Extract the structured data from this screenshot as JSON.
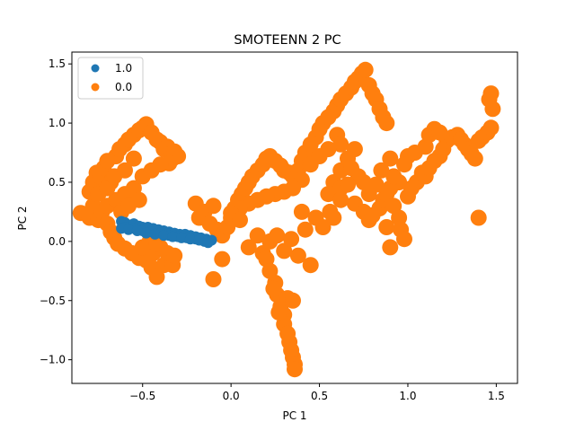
{
  "chart_data": {
    "type": "scatter",
    "title": "SMOTEENN 2 PC",
    "xlabel": "PC 1",
    "ylabel": "PC 2",
    "xlim": [
      -0.9,
      1.62
    ],
    "ylim": [
      -1.2,
      1.6
    ],
    "xticks": [
      -0.5,
      0.0,
      0.5,
      1.0,
      1.5
    ],
    "xtick_labels": [
      "−0.5",
      "0.0",
      "0.5",
      "1.0",
      "1.5"
    ],
    "yticks": [
      -1.0,
      -0.5,
      0.0,
      0.5,
      1.0,
      1.5
    ],
    "ytick_labels": [
      "−1.0",
      "−0.5",
      "0.0",
      "0.5",
      "1.0",
      "1.5"
    ],
    "grid": false,
    "legend": {
      "position": "top-left"
    },
    "series": [
      {
        "name": "1.0",
        "color": "#1f77b4",
        "points": [
          [
            -0.62,
            0.17
          ],
          [
            -0.6,
            0.16
          ],
          [
            -0.58,
            0.14
          ],
          [
            -0.55,
            0.15
          ],
          [
            -0.52,
            0.13
          ],
          [
            -0.5,
            0.12
          ],
          [
            -0.47,
            0.12
          ],
          [
            -0.44,
            0.11
          ],
          [
            -0.41,
            0.1
          ],
          [
            -0.38,
            0.09
          ],
          [
            -0.35,
            0.08
          ],
          [
            -0.32,
            0.07
          ],
          [
            -0.29,
            0.06
          ],
          [
            -0.26,
            0.06
          ],
          [
            -0.23,
            0.05
          ],
          [
            -0.2,
            0.04
          ],
          [
            -0.17,
            0.03
          ],
          [
            -0.14,
            0.02
          ],
          [
            -0.11,
            0.01
          ],
          [
            -0.6,
            0.12
          ],
          [
            -0.55,
            0.11
          ],
          [
            -0.5,
            0.09
          ],
          [
            -0.45,
            0.08
          ],
          [
            -0.4,
            0.07
          ],
          [
            -0.35,
            0.05
          ],
          [
            -0.3,
            0.04
          ],
          [
            -0.25,
            0.03
          ],
          [
            -0.2,
            0.02
          ],
          [
            -0.15,
            0.0
          ],
          [
            -0.62,
            0.11
          ],
          [
            -0.58,
            0.1
          ],
          [
            -0.53,
            0.09
          ],
          [
            -0.48,
            0.07
          ],
          [
            -0.43,
            0.06
          ],
          [
            -0.38,
            0.05
          ],
          [
            -0.33,
            0.04
          ],
          [
            -0.28,
            0.03
          ],
          [
            -0.23,
            0.02
          ],
          [
            -0.18,
            0.01
          ],
          [
            -0.13,
            -0.01
          ]
        ]
      },
      {
        "name": "0.0",
        "color": "#ff7f0e",
        "points": [
          [
            -0.85,
            0.24
          ],
          [
            -0.8,
            0.2
          ],
          [
            -0.78,
            0.3
          ],
          [
            -0.75,
            0.18
          ],
          [
            -0.73,
            0.25
          ],
          [
            -0.7,
            0.15
          ],
          [
            -0.68,
            0.08
          ],
          [
            -0.66,
            0.03
          ],
          [
            -0.64,
            -0.02
          ],
          [
            -0.6,
            -0.06
          ],
          [
            -0.56,
            -0.1
          ],
          [
            -0.52,
            -0.14
          ],
          [
            -0.48,
            -0.16
          ],
          [
            -0.45,
            -0.22
          ],
          [
            -0.42,
            -0.3
          ],
          [
            -0.44,
            -0.1
          ],
          [
            -0.4,
            -0.05
          ],
          [
            -0.38,
            -0.2
          ],
          [
            -0.35,
            -0.15
          ],
          [
            -0.33,
            -0.2
          ],
          [
            -0.5,
            -0.05
          ],
          [
            -0.46,
            0.0
          ],
          [
            -0.42,
            -0.02
          ],
          [
            -0.36,
            -0.1
          ],
          [
            -0.32,
            -0.12
          ],
          [
            -0.8,
            0.42
          ],
          [
            -0.78,
            0.5
          ],
          [
            -0.76,
            0.58
          ],
          [
            -0.74,
            0.55
          ],
          [
            -0.72,
            0.62
          ],
          [
            -0.7,
            0.68
          ],
          [
            -0.68,
            0.5
          ],
          [
            -0.65,
            0.72
          ],
          [
            -0.63,
            0.78
          ],
          [
            -0.6,
            0.82
          ],
          [
            -0.58,
            0.86
          ],
          [
            -0.55,
            0.9
          ],
          [
            -0.52,
            0.94
          ],
          [
            -0.5,
            0.96
          ],
          [
            -0.48,
            0.99
          ],
          [
            -0.45,
            0.92
          ],
          [
            -0.42,
            0.86
          ],
          [
            -0.4,
            0.84
          ],
          [
            -0.38,
            0.78
          ],
          [
            -0.36,
            0.8
          ],
          [
            -0.34,
            0.74
          ],
          [
            -0.33,
            0.7
          ],
          [
            -0.32,
            0.76
          ],
          [
            -0.3,
            0.72
          ],
          [
            -0.35,
            0.66
          ],
          [
            -0.7,
            0.3
          ],
          [
            -0.65,
            0.35
          ],
          [
            -0.6,
            0.4
          ],
          [
            -0.55,
            0.45
          ],
          [
            -0.5,
            0.55
          ],
          [
            -0.45,
            0.6
          ],
          [
            -0.4,
            0.65
          ],
          [
            -0.62,
            0.25
          ],
          [
            -0.58,
            0.3
          ],
          [
            -0.52,
            0.35
          ],
          [
            -0.75,
            0.4
          ],
          [
            -0.7,
            0.45
          ],
          [
            -0.66,
            0.55
          ],
          [
            -0.6,
            0.6
          ],
          [
            -0.55,
            0.7
          ],
          [
            -0.2,
            0.32
          ],
          [
            -0.18,
            0.2
          ],
          [
            -0.15,
            0.25
          ],
          [
            -0.12,
            0.15
          ],
          [
            -0.1,
            0.3
          ],
          [
            -0.08,
            0.1
          ],
          [
            -0.05,
            0.05
          ],
          [
            -0.02,
            0.12
          ],
          [
            0.0,
            0.2
          ],
          [
            0.02,
            0.28
          ],
          [
            0.04,
            0.35
          ],
          [
            0.06,
            0.4
          ],
          [
            0.08,
            0.45
          ],
          [
            0.1,
            0.5
          ],
          [
            0.12,
            0.55
          ],
          [
            0.15,
            0.6
          ],
          [
            0.18,
            0.65
          ],
          [
            0.2,
            0.7
          ],
          [
            0.22,
            0.72
          ],
          [
            0.25,
            0.68
          ],
          [
            0.28,
            0.64
          ],
          [
            0.3,
            0.6
          ],
          [
            0.33,
            0.58
          ],
          [
            0.35,
            0.55
          ],
          [
            0.38,
            0.6
          ],
          [
            0.4,
            0.68
          ],
          [
            0.42,
            0.75
          ],
          [
            0.45,
            0.82
          ],
          [
            0.48,
            0.88
          ],
          [
            0.5,
            0.95
          ],
          [
            0.52,
            1.0
          ],
          [
            0.55,
            1.05
          ],
          [
            0.58,
            1.1
          ],
          [
            0.6,
            1.15
          ],
          [
            0.62,
            1.2
          ],
          [
            0.65,
            1.25
          ],
          [
            0.68,
            1.3
          ],
          [
            0.7,
            1.35
          ],
          [
            0.72,
            1.38
          ],
          [
            0.74,
            1.42
          ],
          [
            0.76,
            1.45
          ],
          [
            0.78,
            1.32
          ],
          [
            0.8,
            1.25
          ],
          [
            0.82,
            1.2
          ],
          [
            0.84,
            1.12
          ],
          [
            0.86,
            1.05
          ],
          [
            0.88,
            1.0
          ],
          [
            0.6,
            0.9
          ],
          [
            0.62,
            0.82
          ],
          [
            0.55,
            0.78
          ],
          [
            0.5,
            0.72
          ],
          [
            0.45,
            0.65
          ],
          [
            0.4,
            0.52
          ],
          [
            0.35,
            0.45
          ],
          [
            0.3,
            0.42
          ],
          [
            0.25,
            0.4
          ],
          [
            0.2,
            0.38
          ],
          [
            0.15,
            0.35
          ],
          [
            0.1,
            0.32
          ],
          [
            0.05,
            0.28
          ],
          [
            0.0,
            0.24
          ],
          [
            0.58,
            0.5
          ],
          [
            0.62,
            0.6
          ],
          [
            0.66,
            0.7
          ],
          [
            0.7,
            0.78
          ],
          [
            0.68,
            0.62
          ],
          [
            0.72,
            0.55
          ],
          [
            0.62,
            0.45
          ],
          [
            0.55,
            0.4
          ],
          [
            0.66,
            0.48
          ],
          [
            -0.05,
            -0.15
          ],
          [
            -0.1,
            -0.32
          ],
          [
            0.05,
            0.18
          ],
          [
            0.1,
            -0.05
          ],
          [
            0.15,
            0.05
          ],
          [
            0.18,
            -0.1
          ],
          [
            0.2,
            -0.15
          ],
          [
            0.22,
            -0.25
          ],
          [
            0.25,
            -0.35
          ],
          [
            0.26,
            -0.45
          ],
          [
            0.28,
            -0.55
          ],
          [
            0.3,
            -0.62
          ],
          [
            0.3,
            -0.7
          ],
          [
            0.32,
            -0.78
          ],
          [
            0.33,
            -0.85
          ],
          [
            0.34,
            -0.92
          ],
          [
            0.35,
            -0.98
          ],
          [
            0.36,
            -1.04
          ],
          [
            0.36,
            -1.08
          ],
          [
            0.27,
            -0.6
          ],
          [
            0.29,
            -0.5
          ],
          [
            0.24,
            -0.4
          ],
          [
            0.32,
            -0.48
          ],
          [
            0.35,
            -0.5
          ],
          [
            0.22,
            0.0
          ],
          [
            0.26,
            0.05
          ],
          [
            0.3,
            -0.08
          ],
          [
            0.34,
            0.02
          ],
          [
            0.38,
            -0.12
          ],
          [
            0.42,
            0.1
          ],
          [
            0.45,
            -0.2
          ],
          [
            0.48,
            0.2
          ],
          [
            0.52,
            0.12
          ],
          [
            0.56,
            0.25
          ],
          [
            0.4,
            0.25
          ],
          [
            0.7,
            0.32
          ],
          [
            0.75,
            0.25
          ],
          [
            0.78,
            0.18
          ],
          [
            0.8,
            0.22
          ],
          [
            0.84,
            0.28
          ],
          [
            0.86,
            0.35
          ],
          [
            0.88,
            0.4
          ],
          [
            0.9,
            0.45
          ],
          [
            0.92,
            0.3
          ],
          [
            0.95,
            0.2
          ],
          [
            0.96,
            0.1
          ],
          [
            0.98,
            0.02
          ],
          [
            0.9,
            -0.05
          ],
          [
            0.88,
            0.12
          ],
          [
            1.0,
            0.38
          ],
          [
            1.02,
            0.45
          ],
          [
            1.05,
            0.5
          ],
          [
            1.08,
            0.58
          ],
          [
            1.1,
            0.55
          ],
          [
            1.12,
            0.62
          ],
          [
            1.15,
            0.68
          ],
          [
            1.18,
            0.72
          ],
          [
            1.2,
            0.78
          ],
          [
            1.22,
            0.85
          ],
          [
            1.25,
            0.88
          ],
          [
            1.28,
            0.9
          ],
          [
            1.3,
            0.86
          ],
          [
            1.32,
            0.82
          ],
          [
            1.34,
            0.78
          ],
          [
            1.36,
            0.74
          ],
          [
            1.38,
            0.7
          ],
          [
            1.1,
            0.8
          ],
          [
            1.12,
            0.9
          ],
          [
            1.15,
            0.95
          ],
          [
            1.18,
            0.92
          ],
          [
            1.0,
            0.72
          ],
          [
            0.98,
            0.65
          ],
          [
            1.04,
            0.75
          ],
          [
            0.95,
            0.5
          ],
          [
            0.92,
            0.55
          ],
          [
            1.4,
            0.85
          ],
          [
            1.42,
            0.88
          ],
          [
            1.45,
            0.92
          ],
          [
            1.47,
            0.96
          ],
          [
            1.48,
            1.12
          ],
          [
            1.46,
            1.2
          ],
          [
            1.47,
            1.25
          ],
          [
            1.4,
            0.2
          ],
          [
            0.9,
            0.7
          ],
          [
            0.85,
            0.6
          ],
          [
            0.82,
            0.48
          ],
          [
            0.78,
            0.4
          ],
          [
            0.75,
            0.5
          ],
          [
            0.62,
            0.35
          ],
          [
            0.58,
            0.2
          ]
        ]
      }
    ]
  }
}
